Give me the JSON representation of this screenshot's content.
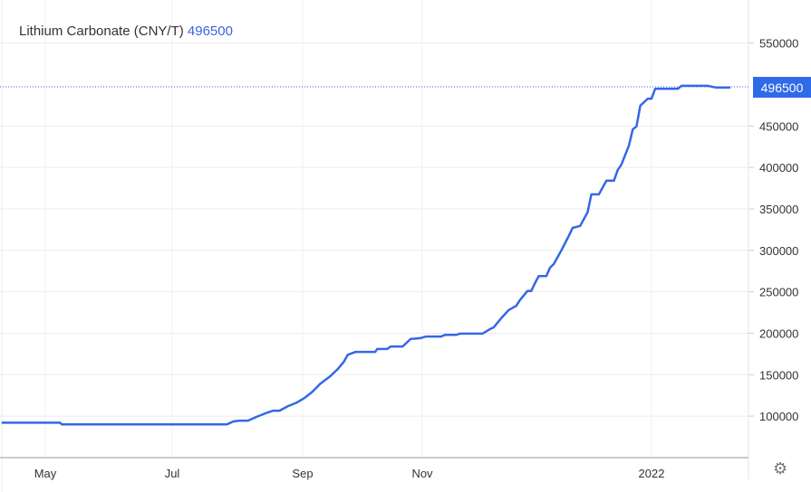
{
  "header": {
    "title": "Lithium Carbonate (CNY/T)",
    "last_value": "496500"
  },
  "last_label": "496500",
  "colors": {
    "line": "#3567e6",
    "badge": "#2f6ae8",
    "grid": "#ebebeb"
  },
  "settings_icon": "gear-icon",
  "chart_data": {
    "type": "line",
    "title": "Lithium Carbonate (CNY/T)",
    "xlabel": "",
    "ylabel": "",
    "x_ticks": [
      {
        "label": "May",
        "date": "2021-05-01"
      },
      {
        "label": "Jul",
        "date": "2021-07-01"
      },
      {
        "label": "Sep",
        "date": "2021-09-01"
      },
      {
        "label": "Nov",
        "date": "2021-11-01"
      },
      {
        "label": "2022",
        "date": "2022-01-01"
      }
    ],
    "y_ticks": [
      100000,
      150000,
      200000,
      250000,
      300000,
      350000,
      400000,
      450000,
      550000
    ],
    "ylim": [
      51000,
      602000
    ],
    "y_axis_side": "right",
    "grid": true,
    "series": [
      {
        "x": [
          "2021-04-10",
          "2021-05-08",
          "2021-05-09",
          "2021-07-27",
          "2021-07-30",
          "2021-08-02",
          "2021-08-06",
          "2021-08-10",
          "2021-08-15",
          "2021-08-18",
          "2021-08-21",
          "2021-08-25",
          "2021-08-29",
          "2021-09-02",
          "2021-09-06",
          "2021-09-10",
          "2021-09-15",
          "2021-09-19",
          "2021-09-22",
          "2021-09-24",
          "2021-09-28",
          "2021-10-08",
          "2021-10-09",
          "2021-10-14",
          "2021-10-16",
          "2021-10-22",
          "2021-10-24",
          "2021-10-26",
          "2021-10-31",
          "2021-11-02",
          "2021-11-06",
          "2021-11-07",
          "2021-11-10",
          "2021-11-11",
          "2021-11-17",
          "2021-11-19",
          "2021-11-20",
          "2021-11-22",
          "2021-11-24",
          "2021-11-26",
          "2021-11-27",
          "2021-11-29",
          "2021-11-30",
          "2021-12-01",
          "2021-12-02",
          "2021-12-04",
          "2021-12-05",
          "2021-12-06",
          "2021-12-08",
          "2021-12-10",
          "2021-12-11",
          "2021-12-13",
          "2021-12-15",
          "2021-12-16",
          "2021-12-18",
          "2021-12-20",
          "2021-12-22",
          "2021-12-23",
          "2021-12-24",
          "2021-12-26",
          "2021-12-27",
          "2021-12-28",
          "2021-12-29",
          "2021-12-31",
          "2022-01-01",
          "2022-01-02",
          "2022-01-08",
          "2022-01-09",
          "2022-01-16",
          "2022-01-18",
          "2022-01-22"
        ],
        "y": [
          92000,
          92000,
          90000,
          90000,
          93500,
          94500,
          94500,
          99000,
          104000,
          106500,
          106500,
          112000,
          116000,
          122000,
          129500,
          139000,
          148000,
          157000,
          165500,
          174000,
          177500,
          177500,
          181000,
          181000,
          184000,
          184000,
          188500,
          193000,
          194000,
          196000,
          196000,
          198000,
          198000,
          199500,
          199500,
          205000,
          207000,
          218000,
          228000,
          233000,
          240000,
          251000,
          251000,
          260500,
          269000,
          269000,
          279000,
          283500,
          300000,
          317500,
          327000,
          329500,
          346000,
          367500,
          367500,
          384000,
          384000,
          397000,
          403500,
          426500,
          446000,
          449500,
          474500,
          483000,
          483000,
          495000,
          495000,
          498500,
          498500,
          496500,
          496500
        ]
      }
    ]
  }
}
